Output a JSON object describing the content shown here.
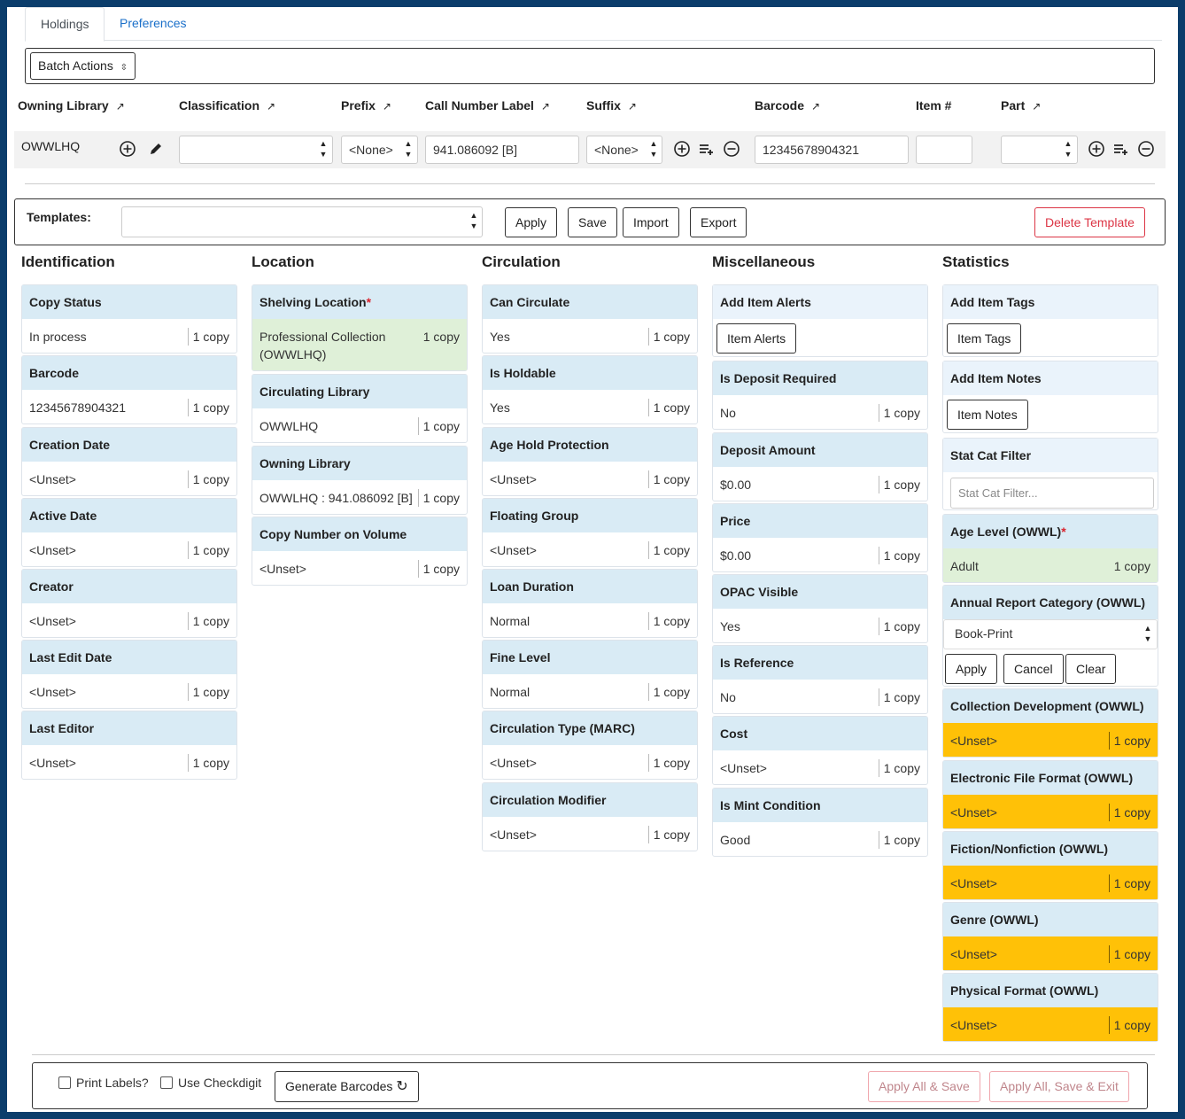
{
  "tabs": {
    "holdings": "Holdings",
    "preferences": "Preferences"
  },
  "batch_actions": "Batch Actions",
  "holdings_header": {
    "owning_library": "Owning Library",
    "classification": "Classification",
    "prefix": "Prefix",
    "call_number_label": "Call Number Label",
    "suffix": "Suffix",
    "barcode": "Barcode",
    "item_number": "Item #",
    "part": "Part",
    "sort_glyph": "↗"
  },
  "holdings_row": {
    "owning_library": "OWWLHQ",
    "classification": "",
    "prefix": "<None>",
    "call_number_label": "941.086092 [B]",
    "suffix": "<None>",
    "barcode": "12345678904321",
    "item_number": "",
    "part": ""
  },
  "templates": {
    "label": "Templates:",
    "apply": "Apply",
    "save": "Save",
    "import": "Import",
    "export": "Export",
    "delete": "Delete Template"
  },
  "columns": {
    "identification": "Identification",
    "location": "Location",
    "circulation": "Circulation",
    "miscellaneous": "Miscellaneous",
    "statistics": "Statistics"
  },
  "count": "1 copy",
  "identification": [
    {
      "label": "Copy Status",
      "value": "In process"
    },
    {
      "label": "Barcode",
      "value": "12345678904321"
    },
    {
      "label": "Creation Date",
      "value": "<Unset>"
    },
    {
      "label": "Active Date",
      "value": "<Unset>"
    },
    {
      "label": "Creator",
      "value": "<Unset>"
    },
    {
      "label": "Last Edit Date",
      "value": "<Unset>"
    },
    {
      "label": "Last Editor",
      "value": "<Unset>"
    }
  ],
  "location": [
    {
      "label": "Shelving Location",
      "required": "*",
      "value": "Professional Collection (OWWLHQ)"
    },
    {
      "label": "Circulating Library",
      "value": "OWWLHQ"
    },
    {
      "label": "Owning Library",
      "value": "OWWLHQ : 941.086092 [B]"
    },
    {
      "label": "Copy Number on Volume",
      "value": "<Unset>"
    }
  ],
  "circulation": [
    {
      "label": "Can Circulate",
      "value": "Yes"
    },
    {
      "label": "Is Holdable",
      "value": "Yes"
    },
    {
      "label": "Age Hold Protection",
      "value": "<Unset>"
    },
    {
      "label": "Floating Group",
      "value": "<Unset>"
    },
    {
      "label": "Loan Duration",
      "value": "Normal"
    },
    {
      "label": "Fine Level",
      "value": "Normal"
    },
    {
      "label": "Circulation Type (MARC)",
      "value": "<Unset>"
    },
    {
      "label": "Circulation Modifier",
      "value": "<Unset>"
    }
  ],
  "misc": {
    "alerts_label": "Add Item Alerts",
    "alerts_button": "Item Alerts",
    "items": [
      {
        "label": "Is Deposit Required",
        "value": "No"
      },
      {
        "label": "Deposit Amount",
        "value": "$0.00"
      },
      {
        "label": "Price",
        "value": "$0.00"
      },
      {
        "label": "OPAC Visible",
        "value": "Yes"
      },
      {
        "label": "Is Reference",
        "value": "No"
      },
      {
        "label": "Cost",
        "value": "<Unset>"
      },
      {
        "label": "Is Mint Condition",
        "value": "Good"
      }
    ]
  },
  "statistics": {
    "tags_label": "Add Item Tags",
    "tags_button": "Item Tags",
    "notes_label": "Add Item Notes",
    "notes_button": "Item Notes",
    "filter_label": "Stat Cat Filter",
    "filter_placeholder": "Stat Cat Filter...",
    "age_level_label": "Age Level (OWWL)",
    "age_level_required": "*",
    "age_level_value": "Adult",
    "annual_label": "Annual Report Category (OWWL)",
    "annual_value": "Book-Print",
    "annual_apply": "Apply",
    "annual_cancel": "Cancel",
    "annual_clear": "Clear",
    "unset_cats": [
      {
        "label": "Collection Development (OWWL)",
        "value": "<Unset>"
      },
      {
        "label": "Electronic File Format (OWWL)",
        "value": "<Unset>"
      },
      {
        "label": "Fiction/Nonfiction (OWWL)",
        "value": "<Unset>"
      },
      {
        "label": "Genre (OWWL)",
        "value": "<Unset>"
      },
      {
        "label": "Physical Format (OWWL)",
        "value": "<Unset>"
      }
    ]
  },
  "footer": {
    "print_labels": "Print Labels?",
    "use_checkdigit": "Use Checkdigit",
    "generate_barcodes": "Generate Barcodes",
    "apply_all_save": "Apply All & Save",
    "apply_all_save_exit": "Apply All, Save & Exit"
  },
  "colors": {
    "frame": "#0b3d6b",
    "card_header": "#d9ebf5",
    "changed": "#dff0d8",
    "unset_required": "#ffc107",
    "link": "#1a6fc9",
    "danger": "#dc3545"
  }
}
